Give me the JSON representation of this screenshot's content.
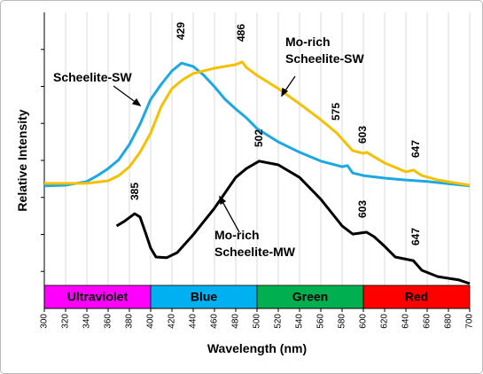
{
  "chart_data": {
    "type": "line",
    "xlabel": "Wavelength (nm)",
    "ylabel": "Relative Intensity",
    "xlim": [
      300,
      700
    ],
    "xticks": [
      300,
      320,
      340,
      360,
      380,
      400,
      420,
      440,
      460,
      480,
      500,
      520,
      540,
      560,
      580,
      600,
      620,
      640,
      660,
      680,
      700
    ],
    "ylim": [
      0,
      8
    ],
    "yticks": [
      1,
      2,
      3,
      4,
      5,
      6,
      7
    ],
    "grid": true,
    "bands": [
      {
        "label": "Ultraviolet",
        "start": 300,
        "end": 400,
        "color": "#ff00ff"
      },
      {
        "label": "Blue",
        "start": 400,
        "end": 500,
        "color": "#00b0f0"
      },
      {
        "label": "Green",
        "start": 500,
        "end": 600,
        "color": "#00b050"
      },
      {
        "label": "Red",
        "start": 600,
        "end": 700,
        "color": "#ff0000"
      }
    ],
    "series": [
      {
        "name": "Scheelite-SW",
        "color": "#1ca8e3",
        "x": [
          300,
          320,
          340,
          350,
          360,
          370,
          380,
          390,
          400,
          410,
          420,
          429,
          440,
          450,
          460,
          470,
          480,
          490,
          500,
          520,
          540,
          560,
          580,
          585,
          590,
          600,
          620,
          640,
          660,
          700
        ],
        "values": [
          3.31,
          3.33,
          3.43,
          3.59,
          3.78,
          4.02,
          4.43,
          4.98,
          5.65,
          6.06,
          6.42,
          6.63,
          6.54,
          6.3,
          5.99,
          5.65,
          5.39,
          5.15,
          4.86,
          4.5,
          4.22,
          3.98,
          3.83,
          3.86,
          3.66,
          3.59,
          3.52,
          3.47,
          3.43,
          3.31
        ]
      },
      {
        "name": "Mo-rich Scheelite-SW",
        "color": "#f5c000",
        "x": [
          300,
          340,
          360,
          370,
          380,
          390,
          400,
          410,
          420,
          430,
          440,
          460,
          480,
          486,
          490,
          500,
          520,
          540,
          560,
          575,
          590,
          600,
          603,
          610,
          620,
          640,
          647,
          655,
          670,
          700
        ],
        "values": [
          3.38,
          3.38,
          3.45,
          3.59,
          3.83,
          4.22,
          4.74,
          5.46,
          5.94,
          6.18,
          6.35,
          6.49,
          6.59,
          6.66,
          6.51,
          6.3,
          5.94,
          5.53,
          5.1,
          4.74,
          4.26,
          4.19,
          4.22,
          4.1,
          3.93,
          3.69,
          3.74,
          3.59,
          3.47,
          3.33
        ]
      },
      {
        "name": "Mo-rich Scheelite-MW",
        "color": "#000000",
        "x": [
          368,
          375,
          385,
          390,
          395,
          400,
          405,
          415,
          425,
          440,
          460,
          480,
          490,
          502,
          520,
          540,
          560,
          580,
          590,
          603,
          610,
          620,
          630,
          647,
          655,
          670,
          690,
          700
        ],
        "values": [
          2.23,
          2.35,
          2.56,
          2.47,
          2.06,
          1.63,
          1.39,
          1.37,
          1.51,
          1.99,
          2.71,
          3.54,
          3.78,
          3.98,
          3.88,
          3.54,
          2.95,
          2.23,
          2.01,
          2.06,
          1.94,
          1.68,
          1.39,
          1.29,
          1.03,
          0.86,
          0.77,
          0.67
        ]
      }
    ],
    "annotations": [
      "429",
      "486",
      "575",
      "603",
      "647",
      "385",
      "502",
      "603",
      "647"
    ]
  }
}
